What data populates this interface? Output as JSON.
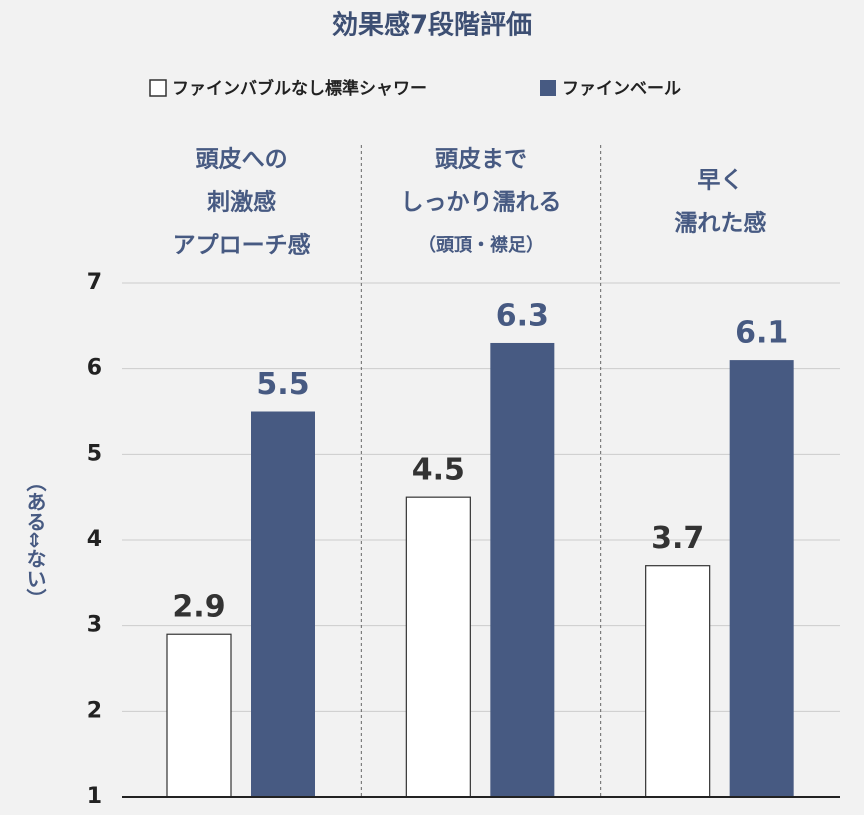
{
  "chart_data": {
    "type": "bar",
    "title": "効果感7段階評価",
    "y_label": "（ある⇔ない）",
    "categories": [
      [
        "頭皮への",
        "刺激感",
        "アプローチ感"
      ],
      [
        "頭皮まで",
        "しっかり濡れる",
        "（頭頂・襟足）"
      ],
      [
        "早く",
        "濡れた感"
      ]
    ],
    "series": [
      {
        "name": "ファインバブルなし標準シャワー",
        "color": "#ffffff",
        "values": [
          2.9,
          4.5,
          3.7
        ]
      },
      {
        "name": "ファインベール",
        "color": "#475a82",
        "values": [
          5.5,
          6.3,
          6.1
        ]
      }
    ],
    "ylim": [
      1,
      7
    ],
    "yticks": [
      1,
      2,
      3,
      4,
      5,
      6,
      7
    ],
    "grid": true
  }
}
